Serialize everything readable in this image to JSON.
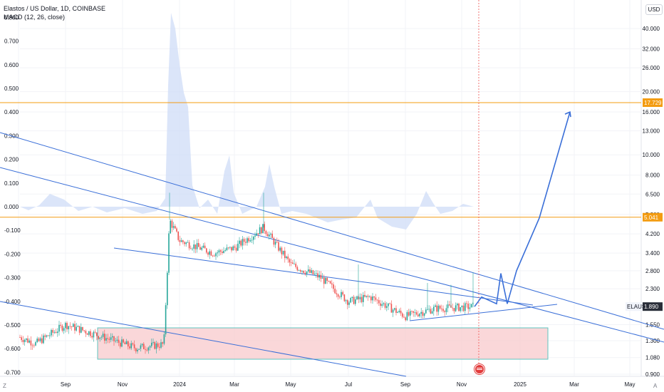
{
  "header": {
    "symbol_line": "Elastos / US Dollar, 1D, COINBASE",
    "indicator_line": "MACD (12, 26, close)",
    "currency_button": "USD"
  },
  "footer": {
    "left_corner": "Z",
    "right_corner": "A"
  },
  "colors": {
    "up": "#26a69a",
    "down": "#ef5350",
    "trendline": "#3a6fd8",
    "level": "#f39c12",
    "zone_fill": "#f8c9cc",
    "zone_border": "#5fc4c0",
    "macd_fill": "#cfdcf7",
    "current_price_bg": "#f0f3fa"
  },
  "chart_data": [
    {
      "type": "candlestick",
      "symbol": "ELAUSD",
      "scale": "log",
      "x_ticks": [
        "Sep",
        "Nov",
        "2024",
        "Mar",
        "May",
        "Jul",
        "Sep",
        "Nov",
        "2025",
        "Mar",
        "May"
      ],
      "right_axis_ticks": [
        "40.000",
        "32.000",
        "26.000",
        "20.000",
        "16.000",
        "13.000",
        "10.000",
        "8.000",
        "6.500",
        "5.200",
        "4.200",
        "3.400",
        "2.800",
        "2.300",
        "1.550",
        "1.300",
        "1.080",
        "0.900"
      ],
      "left_axis_ticks": [
        "0.800",
        "0.700",
        "0.600",
        "0.500",
        "0.400",
        "0.300",
        "0.200",
        "0.100",
        "0.000",
        "-0.100",
        "-0.200",
        "-0.300",
        "-0.400",
        "-0.500",
        "-0.600",
        "-0.700"
      ],
      "horizontal_levels": [
        {
          "value": "17.729",
          "color": "#f39c12"
        },
        {
          "value": "5.041",
          "color": "#f39c12"
        }
      ],
      "current_price": {
        "label": "ELAUSD",
        "value": "1.890"
      },
      "price_path_keypoints": [
        {
          "date": "Jul 2023",
          "price": 1.35
        },
        {
          "date": "Aug 2023",
          "price": 1.26
        },
        {
          "date": "Sep 2023",
          "price": 1.55
        },
        {
          "date": "Oct 2023",
          "price": 1.4
        },
        {
          "date": "Nov 2023",
          "price": 1.2
        },
        {
          "date": "Dec 2023",
          "price": 1.25
        },
        {
          "date": "mid Dec 2023",
          "price": 4.9
        },
        {
          "date": "Jan 2024",
          "price": 3.9
        },
        {
          "date": "Feb 2024",
          "price": 3.4
        },
        {
          "date": "Mar 2024",
          "price": 3.6
        },
        {
          "date": "Apr 2024",
          "price": 4.5
        },
        {
          "date": "May 2024",
          "price": 3.0
        },
        {
          "date": "Jun 2024",
          "price": 2.6
        },
        {
          "date": "Jul 2024",
          "price": 2.0
        },
        {
          "date": "Aug 2024",
          "price": 2.1
        },
        {
          "date": "Sep 2024",
          "price": 1.7
        },
        {
          "date": "Oct 2024",
          "price": 1.85
        },
        {
          "date": "Nov 2024",
          "price": 1.89
        }
      ],
      "projection_path": [
        {
          "date": "Nov 2024",
          "price": 1.89
        },
        {
          "date": "late Nov 2024",
          "price": 2.1
        },
        {
          "date": "Dec 2024",
          "price": 1.95
        },
        {
          "date": "mid Dec 2024",
          "price": 2.7
        },
        {
          "date": "late Dec 2024",
          "price": 1.95
        },
        {
          "date": "Jan 2025",
          "price": 2.8
        },
        {
          "date": "Feb 2025",
          "price": 5.0
        },
        {
          "date": "Mar 2025",
          "price": 16.0
        }
      ],
      "macd_indicator": {
        "name": "MACD (12, 26, close)",
        "style": "area"
      }
    }
  ]
}
